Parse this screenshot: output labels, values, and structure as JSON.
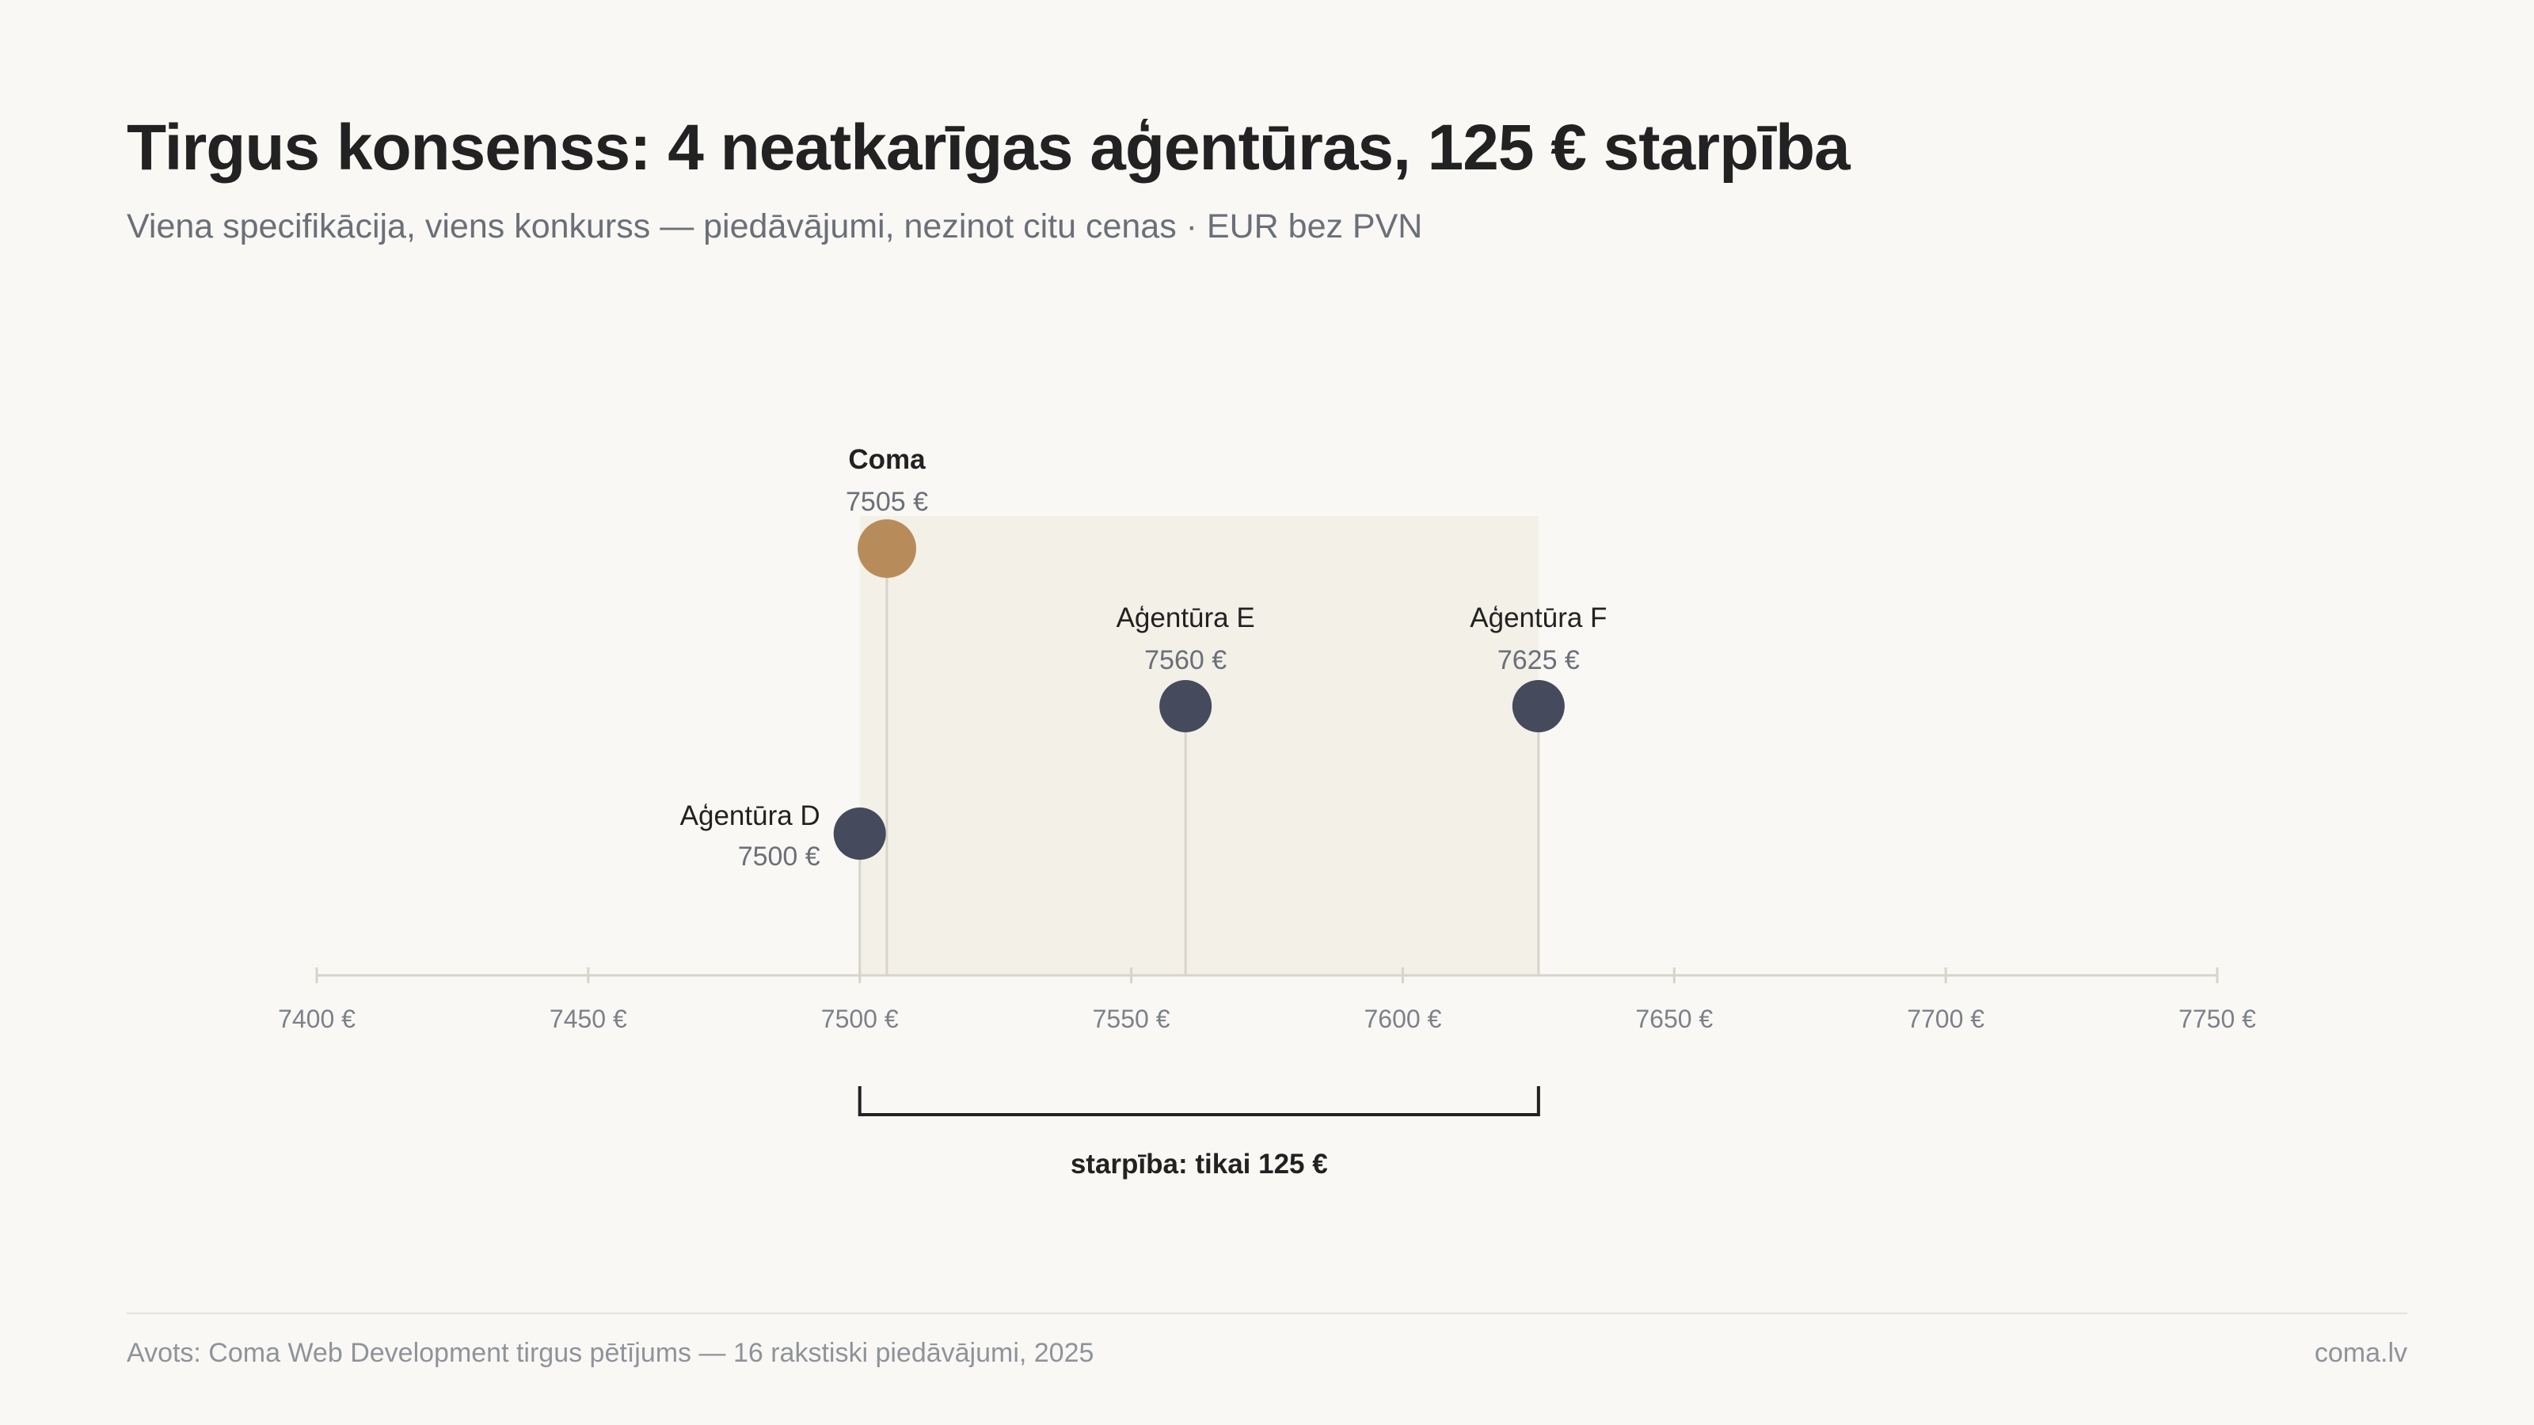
{
  "header": {
    "title": "Tirgus konsenss: 4 neatkarīgas aģentūras, 125 € starpība",
    "subtitle": "Viena specifikācija, viens konkurss — piedāvājumi, nezinot citu cenas · EUR bez PVN"
  },
  "colors": {
    "background": "#f9f8f5",
    "highlight": "#b88c5a",
    "agency": "#454a5c",
    "range_band": "#f3f0e8",
    "stem": "#d8d4cb",
    "axis": "#d8d4cb",
    "bracket": "#222222"
  },
  "chart_data": {
    "type": "scatter",
    "xlim": [
      7400,
      7750
    ],
    "x_ticks": [
      7400,
      7450,
      7500,
      7550,
      7600,
      7650,
      7700,
      7750
    ],
    "tick_labels": [
      "7400 €",
      "7450 €",
      "7500 €",
      "7550 €",
      "7600 €",
      "7650 €",
      "7700 €",
      "7750 €"
    ],
    "points": [
      {
        "name": "Coma",
        "value": 7505,
        "value_label": "7505 €",
        "highlight": true
      },
      {
        "name": "Aģentūra D",
        "value": 7500,
        "value_label": "7500 €",
        "highlight": false
      },
      {
        "name": "Aģentūra E",
        "value": 7560,
        "value_label": "7560 €",
        "highlight": false
      },
      {
        "name": "Aģentūra F",
        "value": 7625,
        "value_label": "7625 €",
        "highlight": false
      }
    ],
    "range": {
      "min": 7500,
      "max": 7625,
      "label": "starpība: tikai 125 €"
    },
    "grid": false,
    "legend": "none"
  },
  "footer": {
    "source": "Avots: Coma Web Development tirgus pētījums — 16 rakstiski piedāvājumi, 2025",
    "site": "coma.lv"
  }
}
